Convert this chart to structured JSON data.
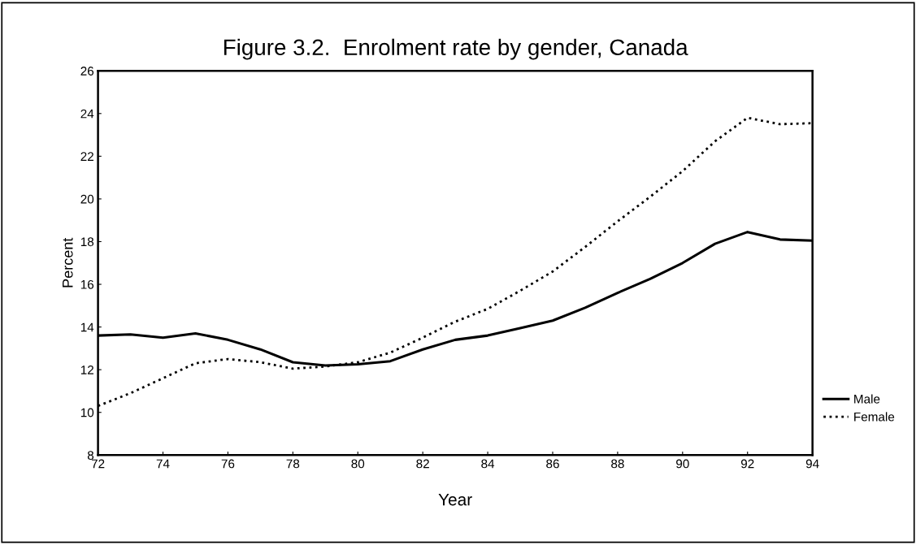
{
  "chart_data": {
    "type": "line",
    "title": "Figure 3.2.  Enrolment rate by gender, Canada",
    "xlabel": "Year",
    "ylabel": "Percent",
    "x": [
      72,
      73,
      74,
      75,
      76,
      77,
      78,
      79,
      80,
      81,
      82,
      83,
      84,
      85,
      86,
      87,
      88,
      89,
      90,
      91,
      92,
      93,
      94
    ],
    "series": [
      {
        "name": "Male",
        "color": "#000000",
        "line_style": "solid",
        "values": [
          13.6,
          13.65,
          13.5,
          13.7,
          13.4,
          12.95,
          12.35,
          12.2,
          12.25,
          12.4,
          12.95,
          13.4,
          13.6,
          13.95,
          14.3,
          14.9,
          15.6,
          16.25,
          17.0,
          17.9,
          18.45,
          18.1,
          18.05
        ]
      },
      {
        "name": "Female",
        "color": "#000000",
        "line_style": "dotted",
        "values": [
          10.3,
          10.9,
          11.6,
          12.3,
          12.5,
          12.35,
          12.05,
          12.15,
          12.35,
          12.8,
          13.5,
          14.25,
          14.85,
          15.7,
          16.6,
          17.75,
          18.95,
          20.1,
          21.3,
          22.7,
          23.8,
          23.5,
          23.55
        ]
      }
    ],
    "xlim": [
      72,
      94
    ],
    "xticks": [
      72,
      74,
      76,
      78,
      80,
      82,
      84,
      86,
      88,
      90,
      92,
      94
    ],
    "ylim": [
      8,
      26
    ],
    "yticks": [
      8,
      10,
      12,
      14,
      16,
      18,
      20,
      22,
      24,
      26
    ],
    "grid": false,
    "legend": "right",
    "marker": "none"
  }
}
